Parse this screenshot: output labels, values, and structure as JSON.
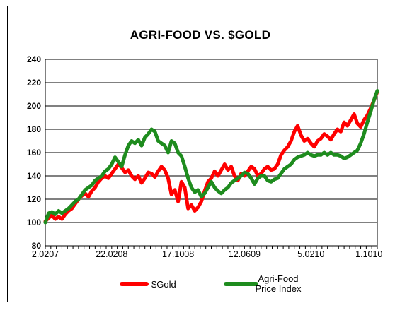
{
  "chart_data": {
    "type": "line",
    "title": "AGRI-FOOD VS. $GOLD",
    "xlabel": "",
    "ylabel": "",
    "ylim": [
      80,
      240
    ],
    "yticks": [
      80,
      100,
      120,
      140,
      160,
      180,
      200,
      220,
      240
    ],
    "xlim": [
      0,
      100
    ],
    "xticks": [
      {
        "x": 0,
        "label": "2.0207"
      },
      {
        "x": 20,
        "label": "22.0208"
      },
      {
        "x": 40,
        "label": "17.1008"
      },
      {
        "x": 60,
        "label": "12.0609"
      },
      {
        "x": 80,
        "label": "5.0210"
      },
      {
        "x": 97.5,
        "label": "1.1010"
      }
    ],
    "grid": true,
    "legend_position": "bottom",
    "series": [
      {
        "name": "$Gold",
        "color": "#ff0000",
        "points": [
          [
            0,
            101
          ],
          [
            1,
            104
          ],
          [
            2,
            106
          ],
          [
            3,
            103
          ],
          [
            4,
            105
          ],
          [
            5,
            103
          ],
          [
            6,
            107
          ],
          [
            7,
            110
          ],
          [
            8,
            112
          ],
          [
            9,
            116
          ],
          [
            10,
            120
          ],
          [
            11,
            123
          ],
          [
            12,
            125
          ],
          [
            13,
            122
          ],
          [
            14,
            127
          ],
          [
            15,
            130
          ],
          [
            16,
            135
          ],
          [
            17,
            138
          ],
          [
            18,
            140
          ],
          [
            19,
            138
          ],
          [
            20,
            142
          ],
          [
            21,
            146
          ],
          [
            22,
            150
          ],
          [
            23,
            147
          ],
          [
            24,
            143
          ],
          [
            25,
            145
          ],
          [
            26,
            140
          ],
          [
            27,
            137
          ],
          [
            28,
            140
          ],
          [
            29,
            134
          ],
          [
            30,
            138
          ],
          [
            31,
            143
          ],
          [
            32,
            142
          ],
          [
            33,
            139
          ],
          [
            34,
            144
          ],
          [
            35,
            148
          ],
          [
            36,
            145
          ],
          [
            37,
            138
          ],
          [
            38,
            124
          ],
          [
            39,
            128
          ],
          [
            40,
            118
          ],
          [
            41,
            135
          ],
          [
            42,
            130
          ],
          [
            43,
            112
          ],
          [
            44,
            115
          ],
          [
            45,
            110
          ],
          [
            46,
            113
          ],
          [
            47,
            118
          ],
          [
            48,
            127
          ],
          [
            49,
            135
          ],
          [
            50,
            138
          ],
          [
            51,
            144
          ],
          [
            52,
            140
          ],
          [
            53,
            145
          ],
          [
            54,
            150
          ],
          [
            55,
            145
          ],
          [
            56,
            148
          ],
          [
            57,
            140
          ],
          [
            58,
            136
          ],
          [
            59,
            142
          ],
          [
            60,
            140
          ],
          [
            61,
            144
          ],
          [
            62,
            148
          ],
          [
            63,
            146
          ],
          [
            64,
            140
          ],
          [
            65,
            142
          ],
          [
            66,
            146
          ],
          [
            67,
            148
          ],
          [
            68,
            145
          ],
          [
            69,
            146
          ],
          [
            70,
            150
          ],
          [
            71,
            158
          ],
          [
            72,
            162
          ],
          [
            73,
            165
          ],
          [
            74,
            170
          ],
          [
            75,
            178
          ],
          [
            76,
            183
          ],
          [
            77,
            175
          ],
          [
            78,
            170
          ],
          [
            79,
            172
          ],
          [
            80,
            168
          ],
          [
            81,
            165
          ],
          [
            82,
            170
          ],
          [
            83,
            172
          ],
          [
            84,
            176
          ],
          [
            85,
            174
          ],
          [
            86,
            171
          ],
          [
            87,
            176
          ],
          [
            88,
            180
          ],
          [
            89,
            178
          ],
          [
            90,
            186
          ],
          [
            91,
            183
          ],
          [
            92,
            188
          ],
          [
            93,
            193
          ],
          [
            94,
            185
          ],
          [
            95,
            182
          ],
          [
            96,
            188
          ],
          [
            97,
            192
          ],
          [
            98,
            198
          ],
          [
            99,
            205
          ],
          [
            100,
            212
          ]
        ]
      },
      {
        "name": "Agri-Food Price Index",
        "color": "#1e8c1e",
        "points": [
          [
            0,
            100
          ],
          [
            1,
            108
          ],
          [
            2,
            109
          ],
          [
            3,
            107
          ],
          [
            4,
            110
          ],
          [
            5,
            108
          ],
          [
            6,
            110
          ],
          [
            7,
            112
          ],
          [
            8,
            115
          ],
          [
            9,
            118
          ],
          [
            10,
            120
          ],
          [
            11,
            124
          ],
          [
            12,
            128
          ],
          [
            13,
            130
          ],
          [
            14,
            132
          ],
          [
            15,
            136
          ],
          [
            16,
            138
          ],
          [
            17,
            140
          ],
          [
            18,
            144
          ],
          [
            19,
            146
          ],
          [
            20,
            150
          ],
          [
            21,
            156
          ],
          [
            22,
            152
          ],
          [
            23,
            148
          ],
          [
            24,
            158
          ],
          [
            25,
            166
          ],
          [
            26,
            170
          ],
          [
            27,
            168
          ],
          [
            28,
            171
          ],
          [
            29,
            166
          ],
          [
            30,
            173
          ],
          [
            31,
            176
          ],
          [
            32,
            180
          ],
          [
            33,
            178
          ],
          [
            34,
            170
          ],
          [
            35,
            168
          ],
          [
            36,
            166
          ],
          [
            37,
            160
          ],
          [
            38,
            170
          ],
          [
            39,
            168
          ],
          [
            40,
            160
          ],
          [
            41,
            157
          ],
          [
            42,
            148
          ],
          [
            43,
            138
          ],
          [
            44,
            130
          ],
          [
            45,
            126
          ],
          [
            46,
            128
          ],
          [
            47,
            122
          ],
          [
            48,
            125
          ],
          [
            49,
            130
          ],
          [
            50,
            135
          ],
          [
            51,
            130
          ],
          [
            52,
            127
          ],
          [
            53,
            125
          ],
          [
            54,
            128
          ],
          [
            55,
            130
          ],
          [
            56,
            134
          ],
          [
            57,
            136
          ],
          [
            58,
            138
          ],
          [
            59,
            140
          ],
          [
            60,
            143
          ],
          [
            61,
            142
          ],
          [
            62,
            138
          ],
          [
            63,
            133
          ],
          [
            64,
            138
          ],
          [
            65,
            140
          ],
          [
            66,
            140
          ],
          [
            67,
            136
          ],
          [
            68,
            135
          ],
          [
            69,
            137
          ],
          [
            70,
            138
          ],
          [
            71,
            142
          ],
          [
            72,
            146
          ],
          [
            73,
            148
          ],
          [
            74,
            150
          ],
          [
            75,
            154
          ],
          [
            76,
            156
          ],
          [
            77,
            157
          ],
          [
            78,
            158
          ],
          [
            79,
            160
          ],
          [
            80,
            158
          ],
          [
            81,
            157
          ],
          [
            82,
            158
          ],
          [
            83,
            158
          ],
          [
            84,
            160
          ],
          [
            85,
            158
          ],
          [
            86,
            160
          ],
          [
            87,
            158
          ],
          [
            88,
            158
          ],
          [
            89,
            157
          ],
          [
            90,
            155
          ],
          [
            91,
            156
          ],
          [
            92,
            158
          ],
          [
            93,
            160
          ],
          [
            94,
            162
          ],
          [
            95,
            168
          ],
          [
            96,
            176
          ],
          [
            97,
            186
          ],
          [
            98,
            195
          ],
          [
            99,
            205
          ],
          [
            100,
            213
          ]
        ]
      }
    ]
  }
}
